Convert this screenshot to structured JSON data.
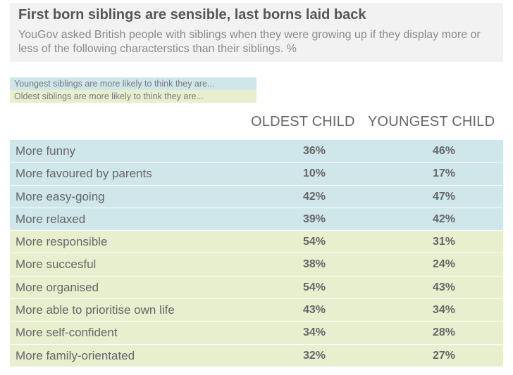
{
  "title": "First born siblings are sensible, last borns laid back",
  "subtitle": "YouGov asked British people with siblings when they were growing up if they display more or less of the following characterstics than their siblings. %",
  "legend": {
    "youngest": "Youngest siblings are more likely to think they are...",
    "oldest": "Oldest siblings are more likely to think they are..."
  },
  "colors": {
    "youngest_row": "#cfe6ea",
    "oldest_row": "#e8efcf",
    "header_bg": "#f2f2f2"
  },
  "chart_data": {
    "type": "table",
    "columns": [
      "OLDEST CHILD",
      "YOUNGEST CHILD"
    ],
    "rows": [
      {
        "label": "More funny",
        "group": "youngest",
        "oldest": "36%",
        "youngest": "46%"
      },
      {
        "label": "More favoured by parents",
        "group": "youngest",
        "oldest": "10%",
        "youngest": "17%"
      },
      {
        "label": "More easy-going",
        "group": "youngest",
        "oldest": "42%",
        "youngest": "47%"
      },
      {
        "label": "More relaxed",
        "group": "youngest",
        "oldest": "39%",
        "youngest": "42%"
      },
      {
        "label": "More responsible",
        "group": "oldest",
        "oldest": "54%",
        "youngest": "31%"
      },
      {
        "label": "More succesful",
        "group": "oldest",
        "oldest": "38%",
        "youngest": "24%"
      },
      {
        "label": "More organised",
        "group": "oldest",
        "oldest": "54%",
        "youngest": "43%"
      },
      {
        "label": "More able to prioritise own life",
        "group": "oldest",
        "oldest": "43%",
        "youngest": "34%"
      },
      {
        "label": "More self-confident",
        "group": "oldest",
        "oldest": "34%",
        "youngest": "28%"
      },
      {
        "label": "More family-orientated",
        "group": "oldest",
        "oldest": "32%",
        "youngest": "27%"
      }
    ]
  }
}
